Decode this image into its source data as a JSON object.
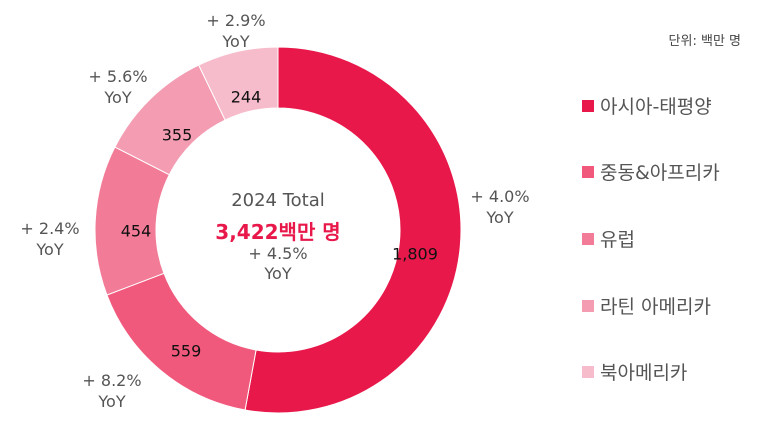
{
  "unit_label": "단위: 백만 명",
  "center": {
    "total_label": "2024 Total",
    "total_value": "3,422백만 명",
    "total_yoy": "+ 4.5%",
    "total_yoy_unit": "YoY"
  },
  "yoy_unit": "YoY",
  "chart_data": {
    "type": "pie",
    "donut": true,
    "legend_position": "right",
    "categories": [
      "아시아-태평양",
      "중동&아프리카",
      "유럽",
      "라틴 아메리카",
      "북아메리카"
    ],
    "values": [
      1809,
      559,
      454,
      355,
      244
    ],
    "value_labels": [
      "1,809",
      "559",
      "454",
      "355",
      "244"
    ],
    "yoy": [
      "+ 4.0%",
      "+ 8.2%",
      "+ 2.4%",
      "+ 5.6%",
      "+ 2.9%"
    ],
    "colors": [
      "#e8184a",
      "#f0587c",
      "#f27c98",
      "#f49cb2",
      "#f7bccb"
    ]
  }
}
